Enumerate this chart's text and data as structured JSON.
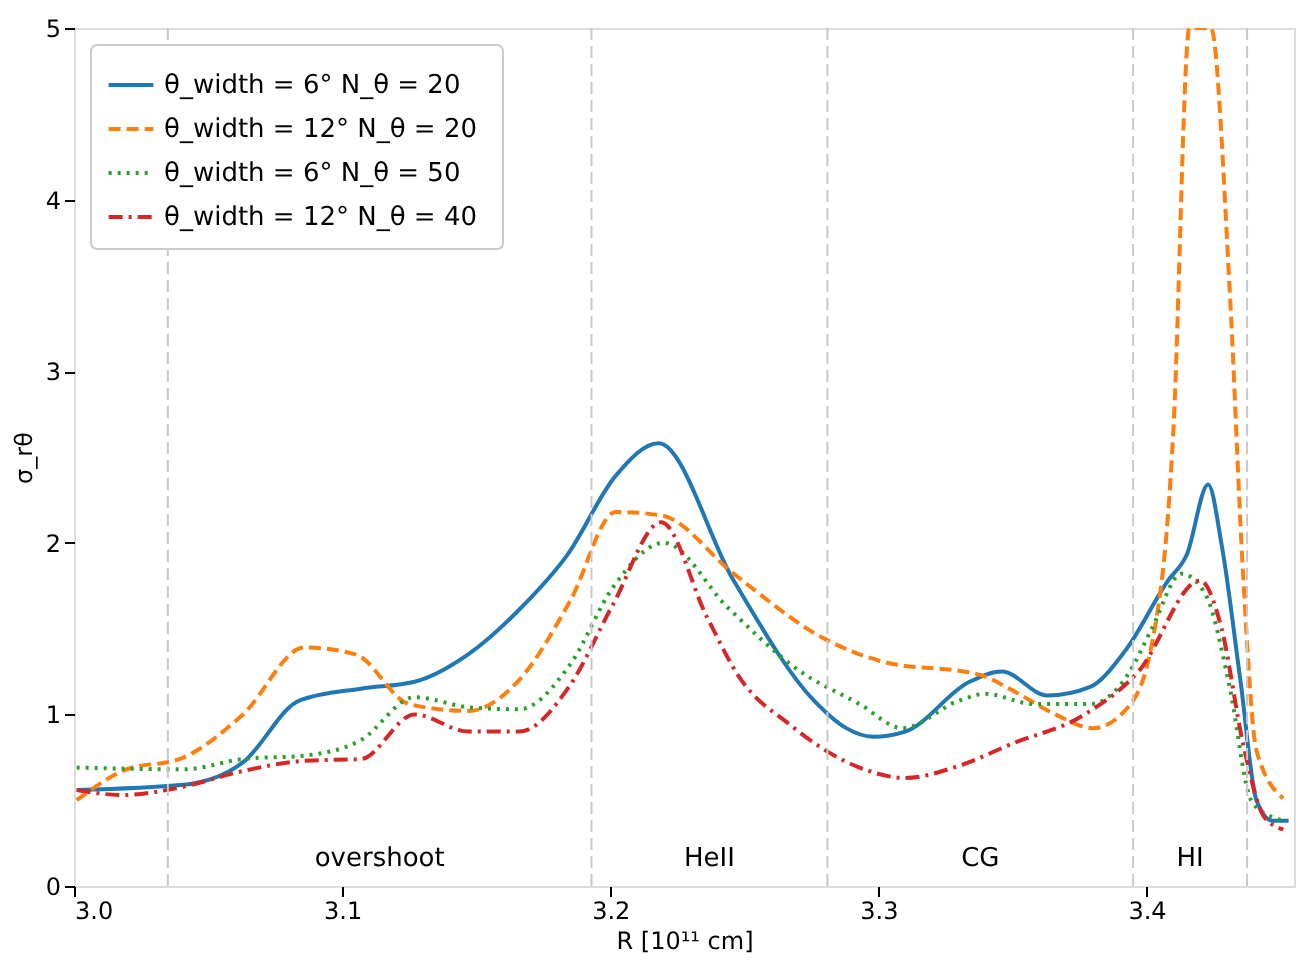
{
  "chart_data": {
    "type": "line",
    "xlabel": "R [10¹¹ cm]",
    "ylabel": "σ_rθ",
    "xlim": [
      3.0,
      3.455
    ],
    "ylim": [
      0,
      5
    ],
    "xticks": [
      {
        "value": 3.0,
        "label": "3.0"
      },
      {
        "value": 3.1,
        "label": "3.1"
      },
      {
        "value": 3.2,
        "label": "3.2"
      },
      {
        "value": 3.3,
        "label": "3.3"
      },
      {
        "value": 3.4,
        "label": "3.4"
      }
    ],
    "yticks": [
      0,
      1,
      2,
      3,
      4,
      5
    ],
    "grid": false,
    "legend": "top left",
    "series": [
      {
        "name": "θ_width = 6°  N_θ = 20",
        "color": "#1f77b4",
        "line_style": "solid",
        "x": [
          3.001,
          3.041,
          3.063,
          3.084,
          3.107,
          3.127,
          3.147,
          3.166,
          3.184,
          3.202,
          3.218,
          3.246,
          3.276,
          3.288,
          3.298,
          3.31,
          3.334,
          3.346,
          3.363,
          3.379,
          3.392,
          3.408,
          3.415,
          3.423,
          3.428,
          3.435,
          3.441,
          3.447,
          3.453
        ],
        "values": [
          0.56,
          0.59,
          0.72,
          1.08,
          1.15,
          1.19,
          1.35,
          1.61,
          1.93,
          2.39,
          2.58,
          1.78,
          1.08,
          0.92,
          0.87,
          0.9,
          1.19,
          1.25,
          1.11,
          1.16,
          1.37,
          1.78,
          1.93,
          2.34,
          1.99,
          1.2,
          0.5,
          0.38,
          0.38
        ]
      },
      {
        "name": "θ_width = 12°  N_θ = 20",
        "color": "#ff7f0e",
        "line_style": "dashed",
        "x": [
          3.001,
          3.018,
          3.041,
          3.063,
          3.086,
          3.105,
          3.125,
          3.147,
          3.166,
          3.185,
          3.202,
          3.219,
          3.246,
          3.28,
          3.301,
          3.338,
          3.35,
          3.366,
          3.38,
          3.393,
          3.402,
          3.41,
          3.416,
          3.424,
          3.431,
          3.436,
          3.441,
          3.451
        ],
        "values": [
          0.5,
          0.67,
          0.75,
          1.0,
          1.39,
          1.35,
          1.06,
          1.02,
          1.2,
          1.66,
          2.18,
          2.16,
          1.82,
          1.44,
          1.31,
          1.23,
          1.14,
          1.0,
          0.92,
          1.04,
          1.41,
          2.65,
          5.0,
          5.0,
          3.48,
          1.82,
          0.79,
          0.51
        ]
      },
      {
        "name": "θ_width = 6°  N_θ = 50",
        "color": "#2ca02c",
        "line_style": "dotted",
        "x": [
          3.001,
          3.041,
          3.063,
          3.086,
          3.107,
          3.127,
          3.148,
          3.166,
          3.185,
          3.201,
          3.22,
          3.244,
          3.27,
          3.293,
          3.309,
          3.33,
          3.34,
          3.358,
          3.379,
          3.393,
          3.402,
          3.413,
          3.422,
          3.431,
          3.439,
          3.447,
          3.452
        ],
        "values": [
          0.69,
          0.68,
          0.74,
          0.76,
          0.85,
          1.1,
          1.04,
          1.03,
          1.29,
          1.74,
          2.0,
          1.62,
          1.26,
          1.06,
          0.92,
          1.08,
          1.12,
          1.06,
          1.06,
          1.23,
          1.5,
          1.82,
          1.7,
          1.16,
          0.5,
          0.4,
          0.38
        ]
      },
      {
        "name": "θ_width = 12°  N_θ = 40",
        "color": "#d62728",
        "line_style": "dashdot",
        "x": [
          3.001,
          3.018,
          3.041,
          3.063,
          3.086,
          3.107,
          3.127,
          3.147,
          3.166,
          3.185,
          3.201,
          3.219,
          3.236,
          3.248,
          3.267,
          3.293,
          3.31,
          3.33,
          3.35,
          3.377,
          3.397,
          3.42,
          3.428,
          3.436,
          3.444,
          3.451
        ],
        "values": [
          0.56,
          0.53,
          0.58,
          0.67,
          0.73,
          0.74,
          1.0,
          0.9,
          0.9,
          1.17,
          1.64,
          2.12,
          1.57,
          1.22,
          0.94,
          0.69,
          0.63,
          0.7,
          0.83,
          1.0,
          1.25,
          1.78,
          1.5,
          0.83,
          0.4,
          0.33
        ]
      }
    ],
    "ref_lines": [
      {
        "axis": "x",
        "value": 3.035,
        "color": "#c8c8c8",
        "line_style": "dashed"
      },
      {
        "axis": "x",
        "value": 3.193,
        "color": "#c8c8c8",
        "line_style": "dashed"
      },
      {
        "axis": "x",
        "value": 3.281,
        "color": "#c8c8c8",
        "line_style": "dashed"
      },
      {
        "axis": "x",
        "value": 3.395,
        "color": "#c8c8c8",
        "line_style": "dashed"
      },
      {
        "axis": "x",
        "value": 3.4375,
        "color": "#c8c8c8",
        "line_style": "dashed"
      }
    ],
    "annotations": [
      "overshoot",
      "HeII",
      "CG",
      "HI"
    ]
  }
}
